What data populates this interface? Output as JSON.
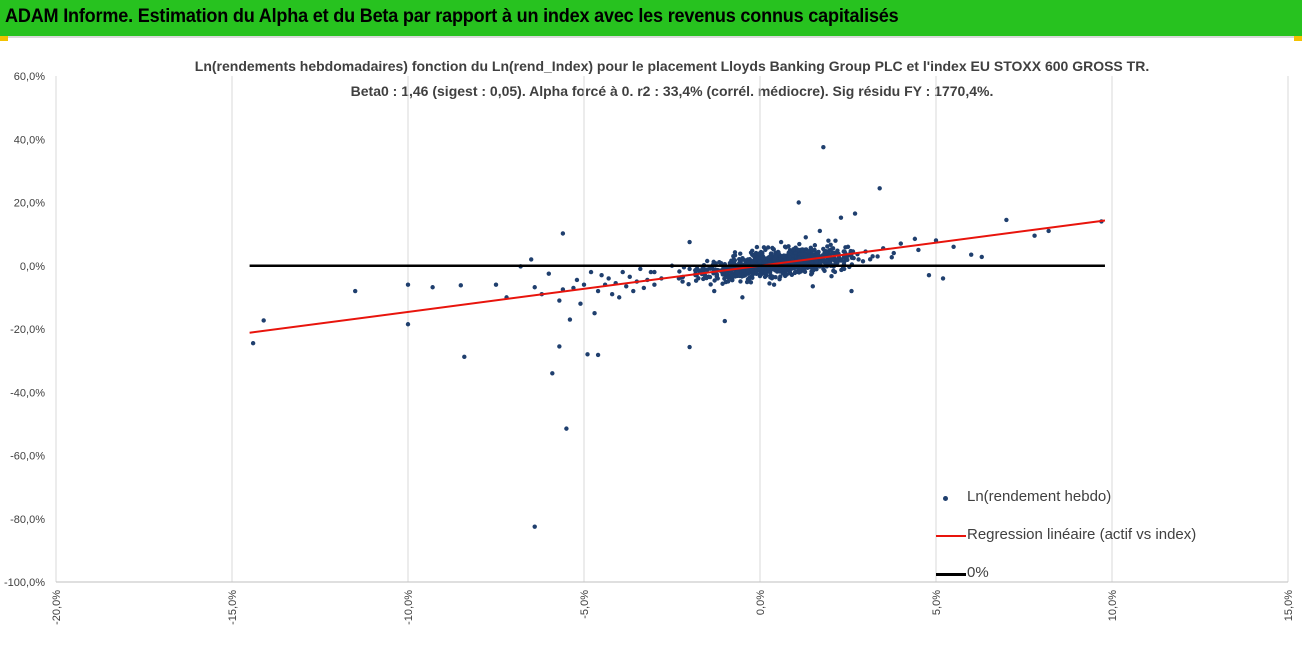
{
  "header": {
    "title": "ADAM Informe. Estimation du Alpha et du Beta par rapport à un index avec les revenus connus capitalisés"
  },
  "colors": {
    "header_bg": "#27c21f",
    "scatter": "#1f3f6e",
    "regression": "#e8140c",
    "zero_line": "#000000",
    "accent": "#f2c200"
  },
  "chart_data": {
    "type": "scatter",
    "title": "Ln(rendements hebdomadaires) fonction du Ln(rend_Index) pour le placement Lloyds Banking Group PLC et l'index EU STOXX 600 GROSS TR.",
    "subtitle": "Beta0 : 1,46  (sigest : 0,05).  Alpha forcé à 0. r2 : 33,4% (corrél. médiocre). Sig résidu FY : 1770,4%.",
    "xlabel": "",
    "ylabel": "",
    "xlim": [
      -0.2,
      0.15
    ],
    "ylim": [
      -1.0,
      0.6
    ],
    "x_ticks": [
      -0.2,
      -0.15,
      -0.1,
      -0.05,
      0.0,
      0.05,
      0.1,
      0.15
    ],
    "y_ticks": [
      -1.0,
      -0.8,
      -0.6,
      -0.4,
      -0.2,
      0.0,
      0.2,
      0.4,
      0.6
    ],
    "x_tick_labels": [
      "-20,0%",
      "-15,0%",
      "-10,0%",
      "-5,0%",
      "0,0%",
      "5,0%",
      "10,0%",
      "15,0%"
    ],
    "y_tick_labels": [
      "-100,0%",
      "-80,0%",
      "-60,0%",
      "-40,0%",
      "-20,0%",
      "0,0%",
      "20,0%",
      "40,0%",
      "60,0%"
    ],
    "grid": {
      "vertical": true,
      "horizontal": false
    },
    "legend_position": "bottom-right",
    "series": [
      {
        "name": "Ln(rendement hebdo)",
        "kind": "scatter",
        "points": [
          [
            -0.144,
            -0.245
          ],
          [
            -0.141,
            -0.173
          ],
          [
            -0.115,
            -0.08
          ],
          [
            -0.1,
            -0.06
          ],
          [
            -0.1,
            -0.185
          ],
          [
            -0.093,
            -0.068
          ],
          [
            -0.085,
            -0.062
          ],
          [
            -0.084,
            -0.288
          ],
          [
            -0.075,
            -0.06
          ],
          [
            -0.072,
            -0.1
          ],
          [
            -0.068,
            -0.002
          ],
          [
            -0.065,
            0.02
          ],
          [
            -0.064,
            -0.068
          ],
          [
            -0.062,
            -0.09
          ],
          [
            -0.06,
            -0.025
          ],
          [
            -0.059,
            -0.34
          ],
          [
            -0.057,
            -0.11
          ],
          [
            -0.056,
            -0.075
          ],
          [
            -0.055,
            -0.515
          ],
          [
            -0.054,
            -0.17
          ],
          [
            -0.053,
            -0.07
          ],
          [
            -0.052,
            -0.045
          ],
          [
            -0.051,
            -0.12
          ],
          [
            -0.05,
            -0.06
          ],
          [
            -0.049,
            -0.28
          ],
          [
            -0.048,
            -0.02
          ],
          [
            -0.047,
            -0.15
          ],
          [
            -0.046,
            -0.08
          ],
          [
            -0.045,
            -0.03
          ],
          [
            -0.044,
            -0.06
          ],
          [
            -0.043,
            -0.04
          ],
          [
            -0.042,
            -0.09
          ],
          [
            -0.041,
            -0.055
          ],
          [
            -0.04,
            -0.1
          ],
          [
            -0.039,
            -0.02
          ],
          [
            -0.038,
            -0.065
          ],
          [
            -0.037,
            -0.035
          ],
          [
            -0.036,
            -0.08
          ],
          [
            -0.035,
            -0.05
          ],
          [
            -0.034,
            -0.01
          ],
          [
            -0.033,
            -0.07
          ],
          [
            -0.032,
            -0.045
          ],
          [
            -0.031,
            -0.02
          ],
          [
            -0.03,
            -0.06
          ],
          [
            -0.064,
            -0.825
          ],
          [
            -0.056,
            0.102
          ],
          [
            -0.057,
            -0.255
          ],
          [
            -0.046,
            -0.282
          ],
          [
            -0.02,
            -0.257
          ],
          [
            -0.01,
            -0.175
          ],
          [
            0.018,
            0.375
          ],
          [
            0.034,
            0.245
          ],
          [
            0.011,
            0.2
          ],
          [
            0.027,
            0.165
          ],
          [
            0.023,
            0.152
          ],
          [
            0.07,
            0.145
          ],
          [
            0.082,
            0.11
          ],
          [
            0.097,
            0.14
          ],
          [
            0.078,
            0.095
          ],
          [
            0.06,
            0.035
          ],
          [
            0.055,
            0.06
          ],
          [
            0.05,
            0.08
          ],
          [
            0.045,
            0.05
          ],
          [
            0.048,
            -0.03
          ],
          [
            0.052,
            -0.04
          ],
          [
            0.04,
            0.07
          ],
          [
            0.038,
            0.04
          ],
          [
            0.035,
            0.055
          ],
          [
            0.032,
            0.03
          ],
          [
            0.03,
            0.045
          ],
          [
            0.028,
            0.02
          ],
          [
            0.025,
            0.06
          ],
          [
            0.022,
            0.01
          ],
          [
            0.02,
            0.035
          ],
          [
            0.018,
            -0.01
          ],
          [
            0.015,
            0.025
          ],
          [
            0.012,
            0.05
          ],
          [
            0.01,
            -0.02
          ],
          [
            0.008,
            0.03
          ],
          [
            0.005,
            0.015
          ],
          [
            0.003,
            -0.03
          ],
          [
            0.0,
            0.01
          ],
          [
            -0.003,
            -0.015
          ],
          [
            -0.005,
            0.02
          ],
          [
            -0.008,
            -0.025
          ],
          [
            -0.01,
            0.005
          ],
          [
            -0.012,
            -0.04
          ],
          [
            -0.015,
            0.015
          ],
          [
            -0.018,
            -0.03
          ],
          [
            -0.02,
            -0.01
          ],
          [
            -0.022,
            -0.05
          ],
          [
            -0.025,
            0.0
          ],
          [
            -0.028,
            -0.04
          ],
          [
            -0.03,
            -0.02
          ],
          [
            0.026,
            -0.08
          ],
          [
            0.015,
            -0.065
          ],
          [
            -0.005,
            -0.1
          ],
          [
            0.006,
            0.075
          ],
          [
            0.013,
            0.09
          ],
          [
            0.017,
            0.11
          ],
          [
            -0.02,
            0.075
          ],
          [
            -0.013,
            -0.08
          ],
          [
            0.044,
            0.085
          ],
          [
            0.063,
            0.028
          ],
          [
            0.004,
            -0.06
          ]
        ],
        "dense_cluster": {
          "x_range": [
            -0.035,
            0.045
          ],
          "note": "many overlapping points"
        }
      },
      {
        "name": "Regression linéaire (actif vs index)",
        "kind": "line",
        "x": [
          -0.145,
          0.098
        ],
        "y": [
          -0.2117,
          0.1431
        ]
      },
      {
        "name": "0%",
        "kind": "line",
        "x": [
          -0.145,
          0.098
        ],
        "y": [
          0.0,
          0.0
        ]
      }
    ]
  }
}
